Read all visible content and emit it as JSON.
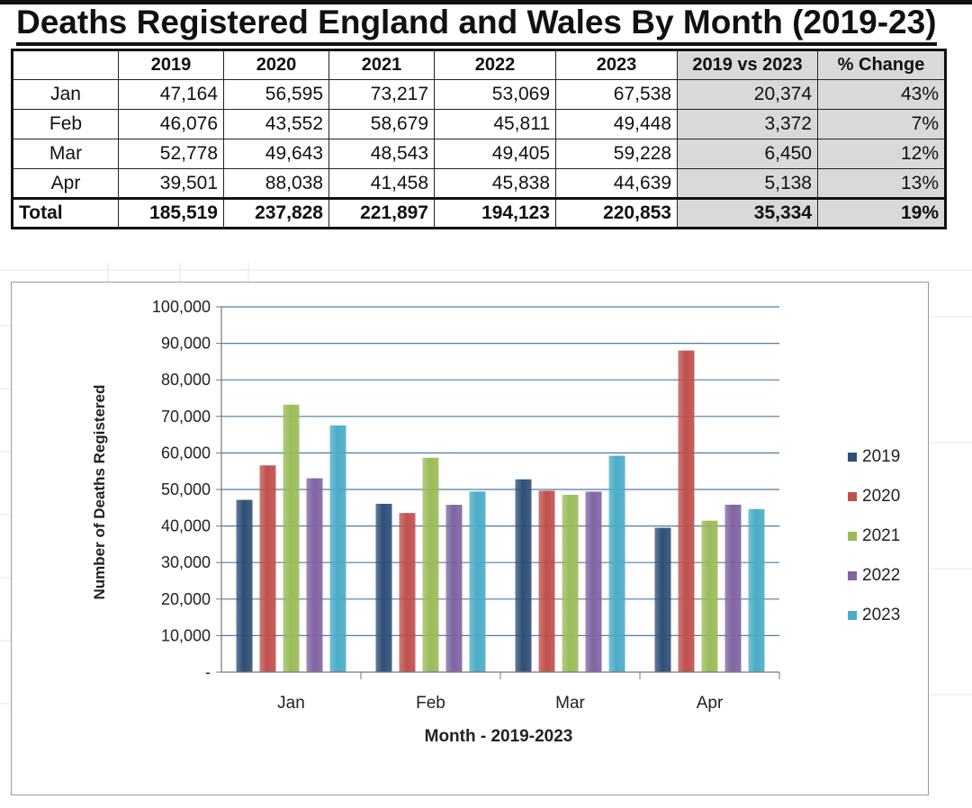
{
  "title": "Deaths Registered England and Wales By Month (2019-23)",
  "table": {
    "headers": [
      "",
      "2019",
      "2020",
      "2021",
      "2022",
      "2023",
      "2019 vs 2023",
      "% Change"
    ],
    "rows": [
      [
        "Jan",
        "47,164",
        "56,595",
        "73,217",
        "53,069",
        "67,538",
        "20,374",
        "43%"
      ],
      [
        "Feb",
        "46,076",
        "43,552",
        "58,679",
        "45,811",
        "49,448",
        "3,372",
        "7%"
      ],
      [
        "Mar",
        "52,778",
        "49,643",
        "48,543",
        "49,405",
        "59,228",
        "6,450",
        "12%"
      ],
      [
        "Apr",
        "39,501",
        "88,038",
        "41,458",
        "45,838",
        "44,639",
        "5,138",
        "13%"
      ]
    ],
    "total": [
      "Total",
      "185,519",
      "237,828",
      "221,897",
      "194,123",
      "220,853",
      "35,334",
      "19%"
    ]
  },
  "chart_data": {
    "type": "bar",
    "categories": [
      "Jan",
      "Feb",
      "Mar",
      "Apr"
    ],
    "series": [
      {
        "name": "2019",
        "color": "#2f4f77",
        "values": [
          47164,
          46076,
          52778,
          39501
        ]
      },
      {
        "name": "2020",
        "color": "#c0504d",
        "values": [
          56595,
          43552,
          49643,
          88038
        ]
      },
      {
        "name": "2021",
        "color": "#9bbb59",
        "values": [
          73217,
          58679,
          48543,
          41458
        ]
      },
      {
        "name": "2022",
        "color": "#8064a2",
        "values": [
          53069,
          45811,
          49405,
          45838
        ]
      },
      {
        "name": "2023",
        "color": "#4bacc6",
        "values": [
          67538,
          49448,
          59228,
          44639
        ]
      }
    ],
    "ylim": [
      0,
      100000
    ],
    "yticks": [
      "-",
      "10,000",
      "20,000",
      "30,000",
      "40,000",
      "50,000",
      "60,000",
      "70,000",
      "80,000",
      "90,000",
      "100,000"
    ],
    "xlabel": "Month - 2019-2023",
    "ylabel": "Number of Deaths Registered",
    "grid": true,
    "legend": "right"
  }
}
